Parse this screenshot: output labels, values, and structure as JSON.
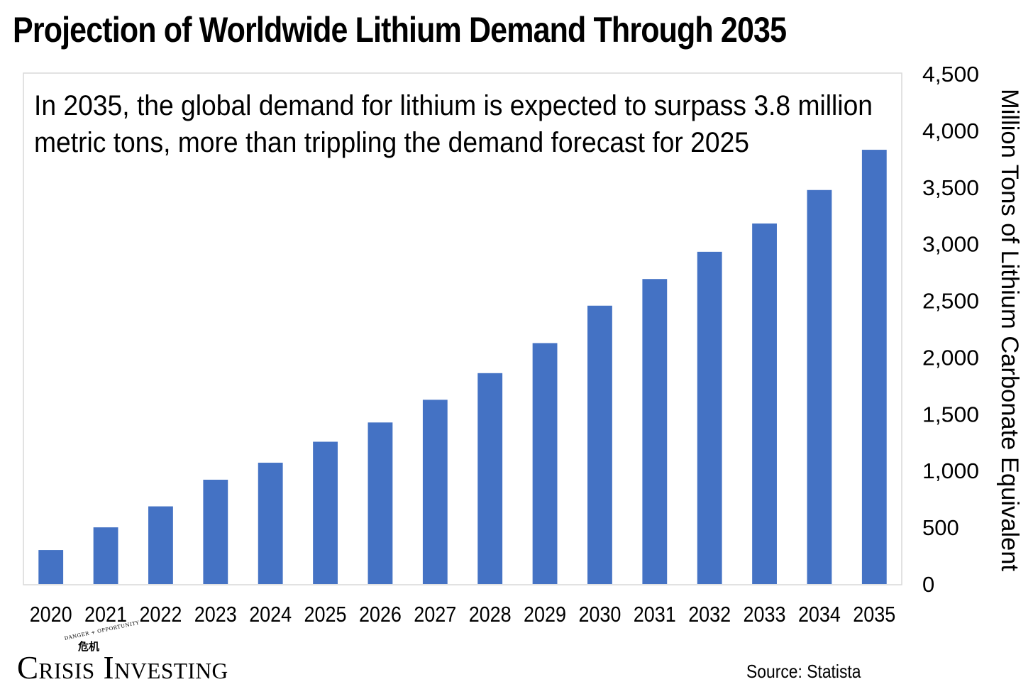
{
  "title": "Projection of Worldwide Lithium Demand Through 2035",
  "annotation": {
    "line1": "In 2035, the global demand for lithium is expected to surpass 3.8 million",
    "line2": "metric tons, more than trippling the demand forecast for 2025"
  },
  "source": "Source: Statista",
  "logo": {
    "tagline": "DANGER + OPPORTUNITY",
    "seal": "危机",
    "text": "Crisis Investing"
  },
  "colors": {
    "bar": "#4472C4",
    "axis": "#d9d9d9",
    "text": "#000000"
  },
  "chart_data": {
    "type": "bar",
    "categories": [
      "2020",
      "2021",
      "2022",
      "2023",
      "2024",
      "2025",
      "2026",
      "2027",
      "2028",
      "2029",
      "2030",
      "2031",
      "2032",
      "2033",
      "2034",
      "2035"
    ],
    "values": [
      300,
      500,
      685,
      920,
      1070,
      1255,
      1425,
      1625,
      1860,
      2125,
      2455,
      2690,
      2930,
      3180,
      3475,
      3830
    ],
    "ylabel": "Million Tons of Lithium Carbonate Equivalent",
    "yaxis_position": "right",
    "ylim": [
      0,
      4500
    ],
    "yticks": [
      0,
      500,
      1000,
      1500,
      2000,
      2500,
      3000,
      3500,
      4000,
      4500
    ],
    "ytick_labels": [
      "0",
      "500",
      "1,000",
      "1,500",
      "2,000",
      "2,500",
      "3,000",
      "3,500",
      "4,000",
      "4,500"
    ],
    "grid": false,
    "legend": "none"
  }
}
